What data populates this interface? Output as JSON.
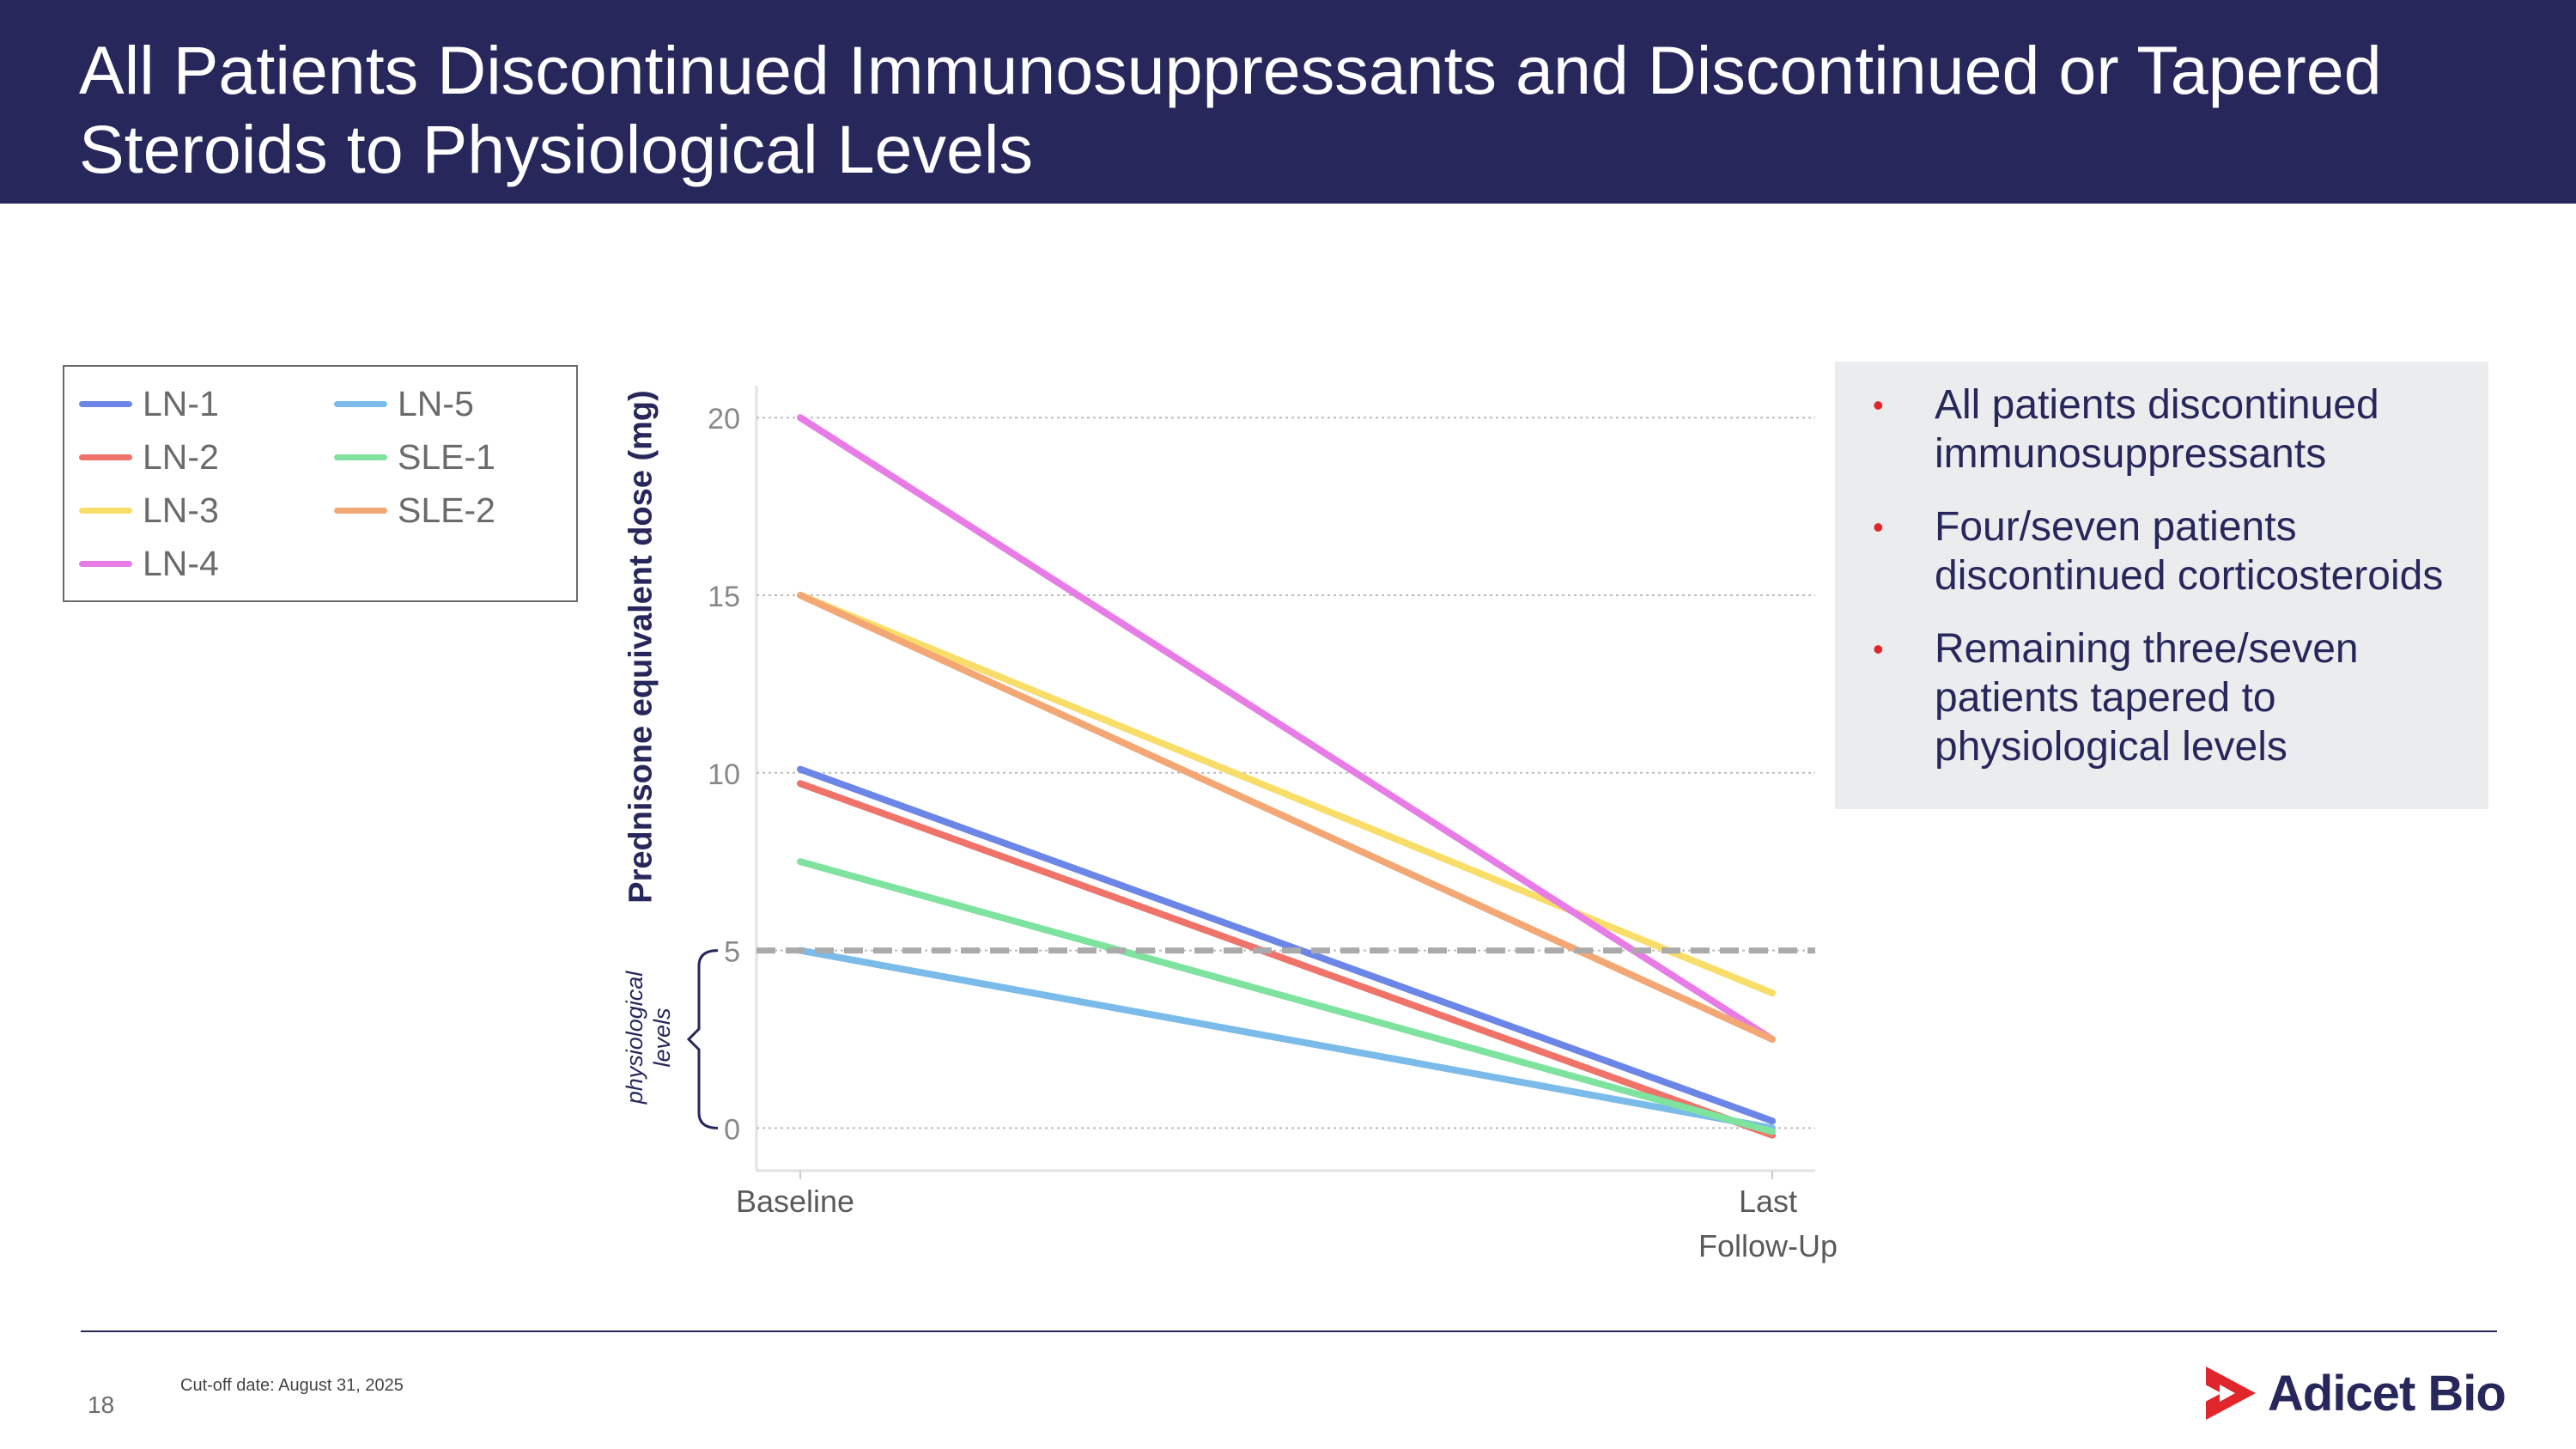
{
  "slide": {
    "title": "All Patients Discontinued Immunosuppressants and Discontinued or Tapered Steroids to Physiological Levels",
    "page_number": "18",
    "cutoff": "Cut-off date: August 31, 2025",
    "logo_text": "Adicet Bio"
  },
  "colors": {
    "header_bg": "#27275c",
    "bullet_marker": "#e0262b",
    "reference_line": "#aaaaaa"
  },
  "bullets": [
    "All patients discontinued immunosuppressants",
    "Four/seven patients discontinued corticosteroids",
    "Remaining three/seven patients tapered to physiological levels"
  ],
  "annotation": {
    "line1": "physiological",
    "line2": "levels"
  },
  "chart_data": {
    "type": "line",
    "title": "",
    "xlabel": "",
    "ylabel": "Prednisone equivalent dose (mg)",
    "categories": [
      "Baseline",
      "Last Follow-Up"
    ],
    "category_labels": [
      [
        "Baseline"
      ],
      [
        "Last",
        "Follow-Up"
      ]
    ],
    "ylim": [
      -1.2,
      20.9
    ],
    "yticks": [
      0,
      5,
      10,
      15,
      20
    ],
    "grid": "horizontal-dotted",
    "reference_line": {
      "y": 5,
      "style": "dashed"
    },
    "legend_position": "top-left",
    "series": [
      {
        "name": "LN-1",
        "color": "#6c86e8",
        "values": [
          10.1,
          0.2
        ]
      },
      {
        "name": "LN-2",
        "color": "#ef7369",
        "values": [
          9.7,
          -0.2
        ]
      },
      {
        "name": "LN-3",
        "color": "#f9dd69",
        "values": [
          15.0,
          3.8
        ]
      },
      {
        "name": "LN-4",
        "color": "#e87ce6",
        "values": [
          20.0,
          2.5
        ]
      },
      {
        "name": "LN-5",
        "color": "#7bbbe9",
        "values": [
          5.0,
          0.0
        ]
      },
      {
        "name": "SLE-1",
        "color": "#7ee39f",
        "values": [
          7.5,
          -0.1
        ]
      },
      {
        "name": "SLE-2",
        "color": "#f3a775",
        "values": [
          15.0,
          2.5
        ]
      }
    ]
  }
}
